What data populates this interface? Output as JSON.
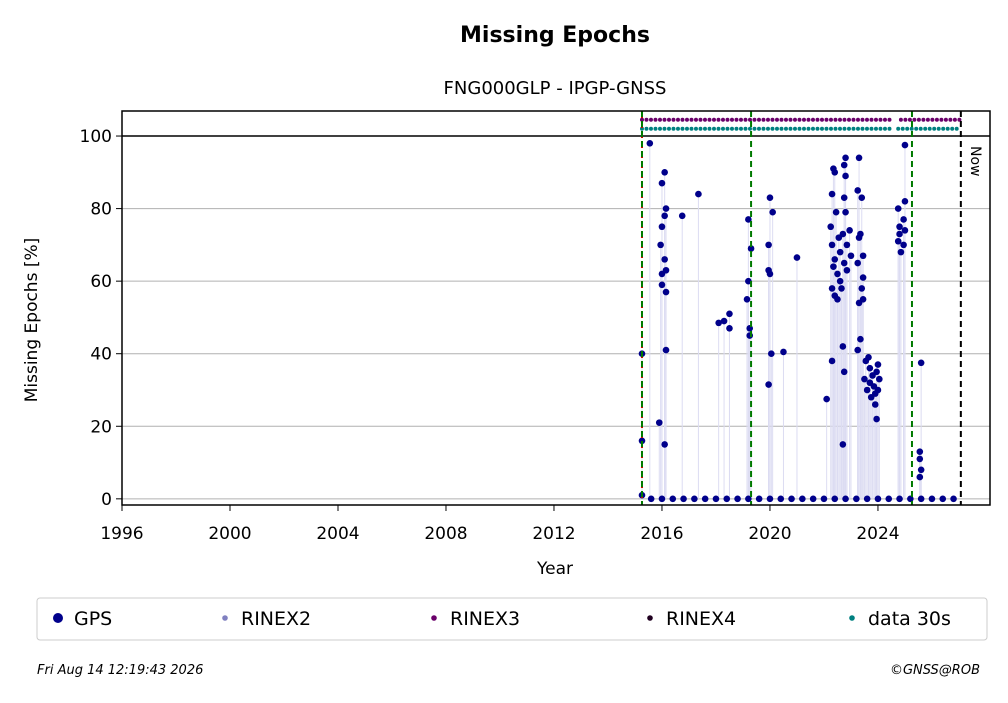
{
  "chart_data": {
    "type": "scatter",
    "title": "Missing Epochs",
    "subtitle": "FNG000GLP - IPGP-GNSS",
    "xlabel": "Year",
    "ylabel": "Missing Epochs [%]",
    "xlim": [
      1996,
      2028.15
    ],
    "ylim": [
      -1.7,
      106.9
    ],
    "xticks": [
      1996,
      2000,
      2004,
      2008,
      2012,
      2016,
      2020,
      2024
    ],
    "yticks": [
      0,
      20,
      40,
      60,
      80,
      100
    ],
    "grid": true,
    "hlines": [
      100
    ],
    "vlines": [
      {
        "x": 2015.26,
        "color": "#d00000",
        "style": "dotted"
      },
      {
        "x": 2015.26,
        "color": "#007a00",
        "style": "dashed"
      },
      {
        "x": 2019.3,
        "color": "#007a00",
        "style": "dashed"
      },
      {
        "x": 2025.26,
        "color": "#007a00",
        "style": "dashed"
      },
      {
        "x": 2027.07,
        "color": "#000000",
        "style": "dashed",
        "label": "Now"
      }
    ],
    "series": [
      {
        "name": "GPS",
        "color": "#00008b",
        "x": [
          2015.26,
          2015.26,
          2015.26,
          2015.55,
          2015.9,
          2015.95,
          2016.0,
          2016.0,
          2016.0,
          2016.0,
          2016.1,
          2016.1,
          2016.15,
          2016.1,
          2016.15,
          2016.1,
          2016.15,
          2016.15,
          2016.75,
          2017.35,
          2018.1,
          2018.3,
          2018.5,
          2018.5,
          2019.2,
          2019.2,
          2019.15,
          2019.3,
          2019.25,
          2019.25,
          2020.0,
          2019.95,
          2019.95,
          2020.0,
          2019.95,
          2020.05,
          2020.1,
          2020.5,
          2021.0,
          2022.1,
          2022.3,
          2022.3,
          2022.25,
          2022.3,
          2022.35,
          2022.3,
          2022.35,
          2022.4,
          2022.45,
          2022.4,
          2022.5,
          2022.4,
          2022.5,
          2022.55,
          2022.6,
          2022.65,
          2022.6,
          2022.7,
          2022.75,
          2022.7,
          2022.7,
          2022.75,
          2022.75,
          2022.8,
          2022.8,
          2022.75,
          2022.8,
          2022.85,
          2022.85,
          2022.95,
          2023.0,
          2023.3,
          2023.25,
          2023.3,
          2023.25,
          2023.3,
          2023.25,
          2023.4,
          2023.35,
          2023.45,
          2023.35,
          2023.4,
          2023.45,
          2023.45,
          2023.55,
          2023.5,
          2023.6,
          2023.7,
          2023.7,
          2023.75,
          2023.65,
          2023.8,
          2023.85,
          2023.9,
          2023.95,
          2023.9,
          2023.95,
          2024.0,
          2024.05,
          2024.0,
          2024.75,
          2024.8,
          2024.75,
          2024.85,
          2024.8,
          2025.0,
          2025.0,
          2024.95,
          2025.0,
          2024.95,
          2025.6,
          2025.55,
          2025.55,
          2025.6,
          2025.55,
          2015.6,
          2016,
          2016.4,
          2016.8,
          2017.2,
          2017.6,
          2018,
          2018.4,
          2018.8,
          2019.2,
          2019.6,
          2020,
          2020.4,
          2020.8,
          2021.2,
          2021.6,
          2022,
          2022.4,
          2022.8,
          2023.2,
          2023.6,
          2024,
          2024.4,
          2024.8,
          2025.2,
          2025.6,
          2026,
          2026.4,
          2026.8
        ],
        "values": [
          16,
          40,
          1,
          98,
          21,
          70,
          87,
          62,
          75,
          59,
          78,
          90,
          80,
          66,
          57,
          15,
          41,
          63,
          78,
          84,
          48.5,
          49,
          51,
          47,
          77,
          60,
          55,
          69,
          47,
          45,
          83,
          70,
          63,
          62,
          31.5,
          40,
          79,
          40.5,
          66.5,
          27.5,
          38,
          84,
          75,
          70,
          64,
          58,
          91,
          90,
          79,
          66,
          62,
          56,
          55,
          72,
          60,
          58,
          68,
          73,
          65,
          42,
          15,
          35,
          92,
          94,
          89,
          83,
          79,
          70,
          63,
          74,
          67,
          94,
          85,
          72,
          65,
          54,
          41,
          83,
          73,
          61,
          44,
          58,
          55,
          67,
          38,
          33,
          30,
          36,
          32,
          28,
          39,
          34,
          31,
          26,
          35,
          29,
          22,
          37,
          33,
          30,
          80,
          75,
          71,
          68,
          73,
          97.5,
          82,
          77,
          74,
          70,
          37.5,
          13,
          11,
          8,
          6,
          0,
          0,
          0,
          0,
          0,
          0,
          0,
          0,
          0,
          0,
          0,
          0,
          0,
          0,
          0,
          0,
          0,
          0,
          0,
          0,
          0,
          0,
          0,
          0,
          0,
          0,
          0,
          0,
          0
        ]
      },
      {
        "name": "RINEX2",
        "color": "#8080c0"
      },
      {
        "name": "RINEX3",
        "color": "#6a006a",
        "level": 104.5,
        "spans": [
          [
            2015.26,
            2024.5
          ],
          [
            2024.85,
            2027.05
          ]
        ]
      },
      {
        "name": "RINEX4",
        "color": "#200020"
      },
      {
        "name": "data 30s",
        "color": "#008080",
        "level": 102,
        "spans": [
          [
            2015.26,
            2024.55
          ],
          [
            2024.75,
            2027.05
          ]
        ]
      }
    ]
  },
  "footer": {
    "date": "Fri Aug 14 12:19:43 2026",
    "credit": "©GNSS@ROB"
  }
}
